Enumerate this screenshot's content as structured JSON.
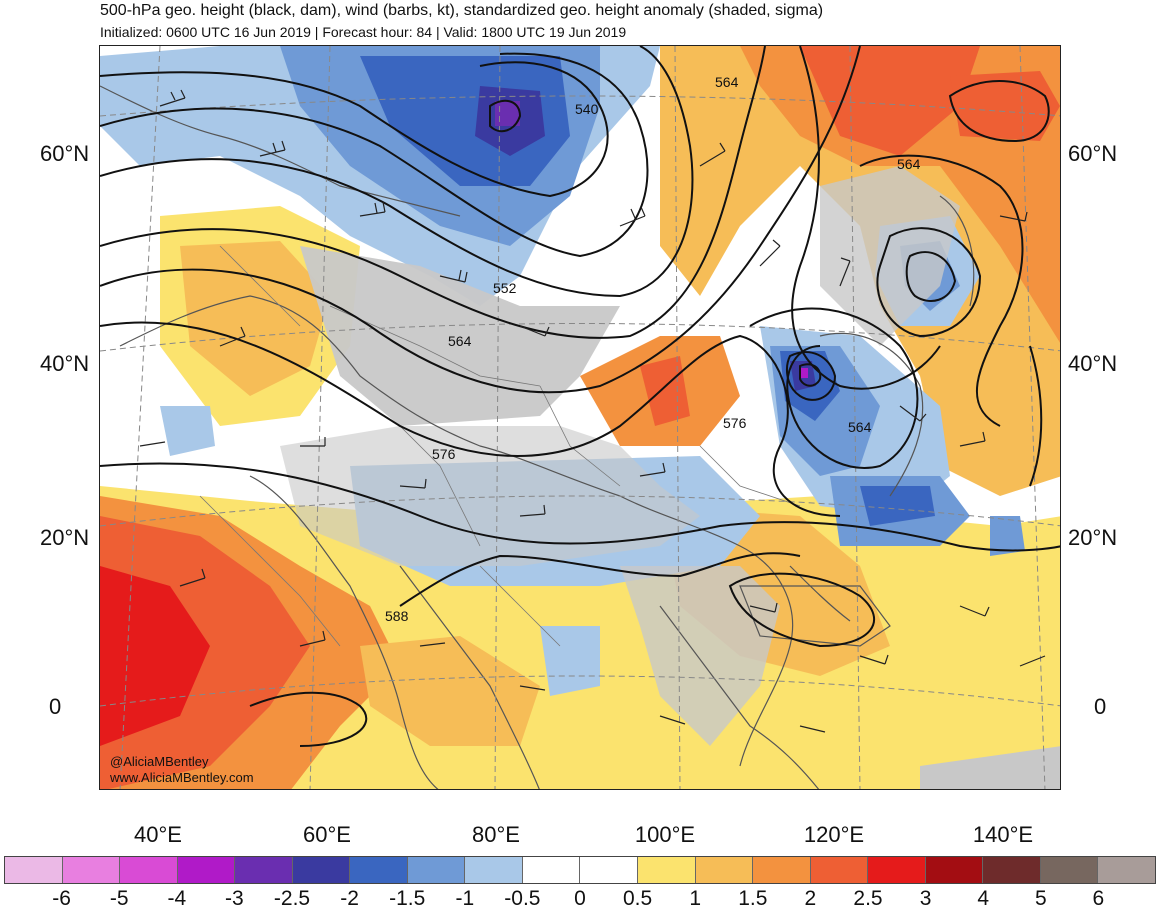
{
  "header": {
    "title": "500-hPa geo. height (black, dam), wind (barbs, kt), standardized geo. height anomaly (shaded, sigma)",
    "subtitle": "Initialized: 0600 UTC 16 Jun 2019 | Forecast hour: 84 | Valid: 1800 UTC 19 Jun 2019"
  },
  "map": {
    "lat_labels": [
      "60°N",
      "40°N",
      "20°N",
      "0"
    ],
    "lon_labels": [
      "40°E",
      "60°E",
      "80°E",
      "100°E",
      "120°E",
      "140°E"
    ],
    "contour_labels": [
      "540",
      "552",
      "564",
      "564",
      "564",
      "576",
      "576",
      "588",
      "564"
    ],
    "credit_handle": "@AliciaMBentley",
    "credit_url": "www.AliciaMBentley.com",
    "land_color": "#c8c8c8",
    "border_color": "#555555"
  },
  "colorbar": {
    "colors": [
      "#ebb9e6",
      "#e87fe0",
      "#d94bd5",
      "#b01ac8",
      "#6a2eb0",
      "#3a3aa0",
      "#3a66c0",
      "#6f9ad6",
      "#a9c8e8",
      "#ffffff",
      "#ffffff",
      "#fbe36e",
      "#f6bd57",
      "#f3923f",
      "#ee5f34",
      "#e51b1b",
      "#a30d12",
      "#6e2b2b",
      "#77675f",
      "#a89c99"
    ],
    "ticks": [
      "-6",
      "-5",
      "-4",
      "-3",
      "-2.5",
      "-2",
      "-1.5",
      "-1",
      "-0.5",
      "0",
      "0.5",
      "1",
      "1.5",
      "2",
      "2.5",
      "3",
      "4",
      "5",
      "6"
    ]
  }
}
